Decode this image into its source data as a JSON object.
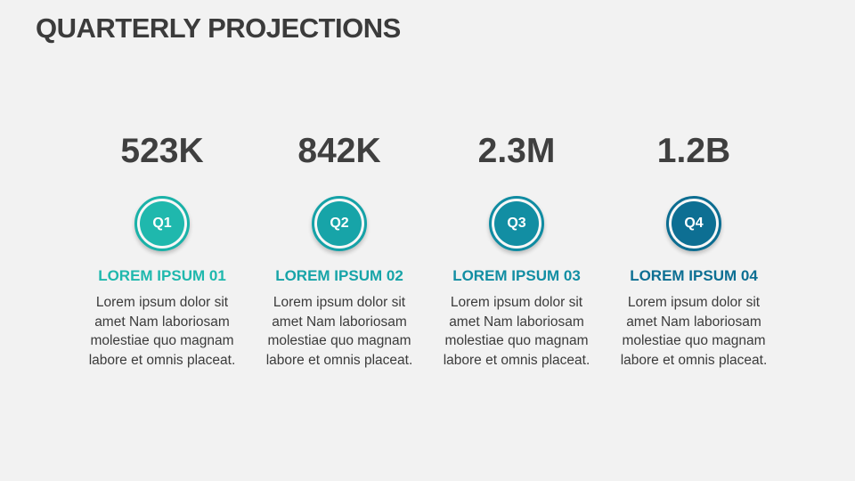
{
  "title": "QUARTERLY PROJECTIONS",
  "quarters": [
    {
      "value": "523K",
      "label": "Q1",
      "heading": "LOREM IPSUM 01",
      "body": [
        "Lorem ipsum dolor sit",
        "amet Nam laboriosam",
        "molestiae quo magnam",
        "labore et omnis placeat."
      ],
      "color": "#1fb8ad",
      "ring": "#1ab2a8"
    },
    {
      "value": "842K",
      "label": "Q2",
      "heading": "LOREM IPSUM 02",
      "body": [
        "Lorem ipsum dolor sit",
        "amet Nam laboriosam",
        "molestiae quo magnam",
        "labore et omnis placeat."
      ],
      "color": "#17a4a8",
      "ring": "#15a2a7"
    },
    {
      "value": "2.3M",
      "label": "Q3",
      "heading": "LOREM IPSUM 03",
      "body": [
        "Lorem ipsum dolor sit",
        "amet Nam laboriosam",
        "molestiae quo magnam",
        "labore et omnis placeat."
      ],
      "color": "#128ea3",
      "ring": "#108ca2"
    },
    {
      "value": "1.2B",
      "label": "Q4",
      "heading": "LOREM IPSUM 04",
      "body": [
        "Lorem ipsum dolor sit",
        "amet Nam laboriosam",
        "molestiae quo magnam",
        "labore et omnis placeat."
      ],
      "color": "#0d6f93",
      "ring": "#0c6d91"
    }
  ]
}
